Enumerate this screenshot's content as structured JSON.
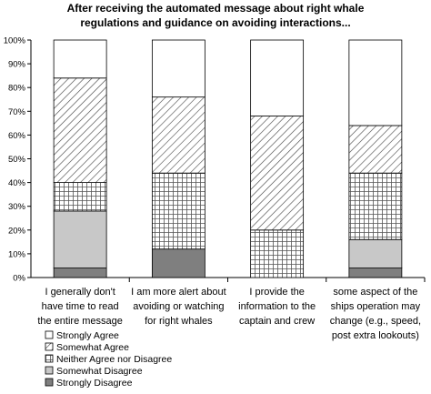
{
  "chart_data": {
    "type": "bar",
    "stacked": true,
    "title_lines": [
      "After receiving the automated message about right whale",
      "regulations and guidance on avoiding interactions..."
    ],
    "ylim": [
      0,
      100
    ],
    "yticks": [
      "0%",
      "10%",
      "20%",
      "30%",
      "40%",
      "50%",
      "60%",
      "70%",
      "80%",
      "90%",
      "100%"
    ],
    "grid": false,
    "legend_position": "bottom-left",
    "categories": [
      [
        "I generally don't",
        "have time to read",
        "the entire message"
      ],
      [
        "I am more alert about",
        "avoiding or watching",
        "for right whales"
      ],
      [
        "I provide the",
        "information to the",
        "captain and crew"
      ],
      [
        "some aspect of the",
        "ships operation may",
        "change (e.g., speed,",
        "post extra lookouts)"
      ]
    ],
    "series": [
      {
        "name": "Strongly Disagree",
        "values": [
          4,
          12,
          0,
          4
        ],
        "color": "#7f7f7f",
        "pattern": "solid"
      },
      {
        "name": "Somewhat Disagree",
        "values": [
          24,
          0,
          0,
          12
        ],
        "color": "#c8c8c8",
        "pattern": "solid"
      },
      {
        "name": "Neither Agree nor Disagree",
        "values": [
          12,
          32,
          20,
          28
        ],
        "color": "#ffffff",
        "pattern": "grid"
      },
      {
        "name": "Somewhat Agree",
        "values": [
          44,
          32,
          48,
          20
        ],
        "color": "#ffffff",
        "pattern": "diagonal"
      },
      {
        "name": "Strongly Agree",
        "values": [
          16,
          24,
          32,
          36
        ],
        "color": "#ffffff",
        "pattern": "solid"
      }
    ],
    "legend_order": [
      4,
      3,
      2,
      1,
      0
    ]
  }
}
